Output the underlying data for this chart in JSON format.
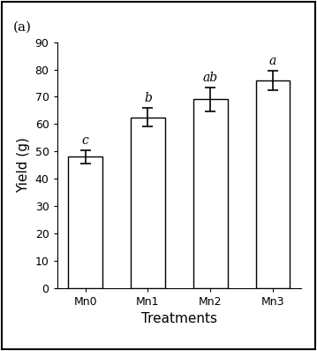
{
  "categories": [
    "Mn0",
    "Mn1",
    "Mn2",
    "Mn3"
  ],
  "values": [
    48.0,
    62.5,
    69.0,
    76.0
  ],
  "errors": [
    2.5,
    3.5,
    4.5,
    3.5
  ],
  "significance": [
    "c",
    "b",
    "ab",
    "a"
  ],
  "bar_color": "#ffffff",
  "bar_edgecolor": "#000000",
  "title": "(a)",
  "xlabel": "Treatments",
  "ylabel": "Yield (g)",
  "ylim": [
    0,
    90
  ],
  "yticks": [
    0,
    10,
    20,
    30,
    40,
    50,
    60,
    70,
    80,
    90
  ],
  "title_fontsize": 11,
  "label_fontsize": 11,
  "tick_fontsize": 9,
  "sig_fontsize": 10,
  "bar_width": 0.55,
  "capsize": 4,
  "elinewidth": 1.2,
  "ecapthick": 1.2
}
